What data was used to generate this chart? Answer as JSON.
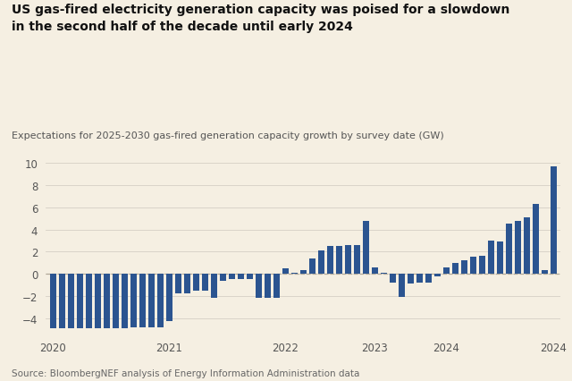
{
  "title": "US gas-fired electricity generation capacity was poised for a slowdown\nin the second half of the decade until early 2024",
  "subtitle": "Expectations for 2025-2030 gas-fired generation capacity growth by survey date (GW)",
  "source": "Source: BloombergNEF analysis of Energy Information Administration data",
  "background_color": "#f5efe2",
  "bar_color": "#2b5490",
  "dashed_line_color": "#b0a898",
  "ylim": [
    -5.2,
    11
  ],
  "yticks": [
    -4,
    -2,
    0,
    2,
    4,
    6,
    8,
    10
  ],
  "values": [
    -4.9,
    -4.9,
    -4.9,
    -4.9,
    -4.9,
    -4.9,
    -4.9,
    -4.9,
    -4.9,
    -4.85,
    -4.85,
    -4.85,
    -4.85,
    -4.3,
    -1.8,
    -1.8,
    -1.5,
    -1.5,
    -2.2,
    -0.6,
    -0.5,
    -0.5,
    -0.5,
    -2.2,
    -2.2,
    -2.2,
    0.5,
    0.1,
    0.3,
    1.4,
    2.1,
    2.5,
    2.5,
    2.6,
    2.6,
    4.8,
    0.6,
    0.1,
    -0.8,
    -2.1,
    -0.9,
    -0.8,
    -0.8,
    -0.2,
    0.6,
    1.0,
    1.2,
    1.5,
    1.6,
    3.0,
    2.9,
    4.5,
    4.8,
    5.1,
    6.3,
    0.3,
    9.7
  ],
  "x_tick_positions": [
    0,
    13,
    26,
    36,
    44,
    56
  ],
  "x_tick_labels": [
    "2020",
    "2021",
    "2022",
    "2023",
    "2024",
    "2024"
  ]
}
